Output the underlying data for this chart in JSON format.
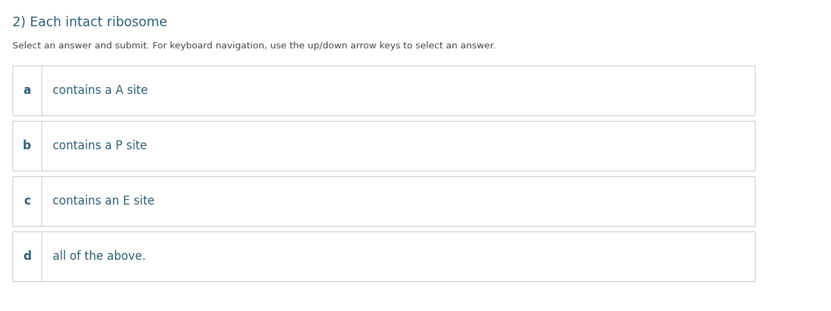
{
  "title": "2) Each intact ribosome",
  "subtitle": "Select an answer and submit. For keyboard navigation, use the up/down arrow keys to select an answer.",
  "options": [
    {
      "label": "a",
      "text": "contains a A site"
    },
    {
      "label": "b",
      "text": "contains a P site"
    },
    {
      "label": "c",
      "text": "contains an E site"
    },
    {
      "label": "d",
      "text": "all of the above."
    }
  ],
  "background_color": "#ffffff",
  "title_color": "#2d5f7a",
  "subtitle_color": "#444444",
  "label_color": "#2d5f7a",
  "text_color": "#2d5f7a",
  "border_color": "#c8cdd0",
  "divider_color": "#c8cdd0",
  "title_fontsize": 13.5,
  "subtitle_fontsize": 9.5,
  "option_fontsize": 12,
  "label_fontsize": 12
}
